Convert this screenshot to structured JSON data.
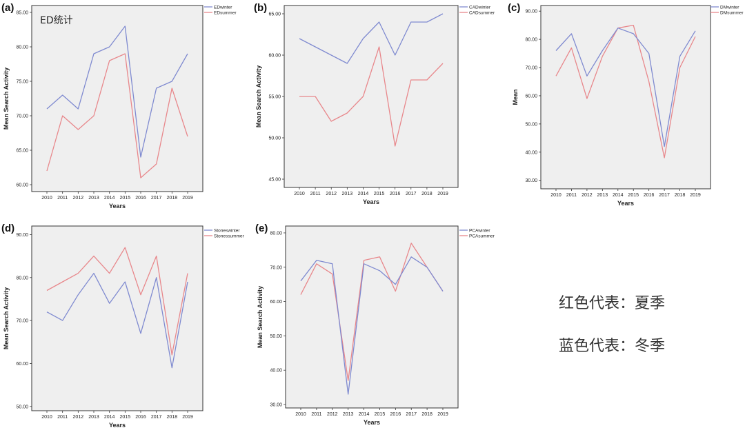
{
  "colors": {
    "winter": "#7f8ad0",
    "summer": "#e8878b",
    "plot_bg": "#efefef",
    "frame": "#333333"
  },
  "notes": {
    "summer_note": "红色代表：夏季",
    "winter_note": "蓝色代表：冬季"
  },
  "chart_data": [
    {
      "panel": "(a)",
      "type": "line",
      "title": "",
      "inner_title": "ED统计",
      "xlabel": "Years",
      "ylabel": "Mean Search Activity",
      "x": [
        "2010",
        "2011",
        "2012",
        "2013",
        "2014",
        "2015",
        "2016",
        "2017",
        "2018",
        "2019"
      ],
      "ylim": [
        59,
        86
      ],
      "yticks": [
        60,
        65,
        70,
        75,
        80,
        85
      ],
      "series": [
        {
          "name": "EDwinter",
          "values": [
            71,
            73,
            71,
            79,
            80,
            83,
            64,
            74,
            75,
            79
          ]
        },
        {
          "name": "EDsummer",
          "values": [
            62,
            70,
            68,
            70,
            78,
            79,
            61,
            63,
            74,
            67
          ]
        }
      ]
    },
    {
      "panel": "(b)",
      "type": "line",
      "title": "",
      "xlabel": "Years",
      "ylabel": "Mean Search Activity",
      "x": [
        "2010",
        "2011",
        "2012",
        "2013",
        "2014",
        "2015",
        "2016",
        "2017",
        "2018",
        "2019"
      ],
      "ylim": [
        44,
        66
      ],
      "yticks": [
        45,
        50,
        55,
        60,
        65
      ],
      "series": [
        {
          "name": "CADwinter",
          "values": [
            62,
            61,
            60,
            59,
            62,
            64,
            60,
            64,
            64,
            65
          ]
        },
        {
          "name": "CADsummer",
          "values": [
            55,
            55,
            52,
            53,
            55,
            61,
            49,
            57,
            57,
            59
          ]
        }
      ]
    },
    {
      "panel": "(c)",
      "type": "line",
      "title": "",
      "xlabel": "Years",
      "ylabel": "Mean",
      "x": [
        "2010",
        "2011",
        "2012",
        "2013",
        "2014",
        "2015",
        "2016",
        "2017",
        "2018",
        "2019"
      ],
      "ylim": [
        27,
        92
      ],
      "yticks": [
        30,
        40,
        50,
        60,
        70,
        80,
        90
      ],
      "series": [
        {
          "name": "DMwinter",
          "values": [
            76,
            82,
            67,
            76,
            84,
            82,
            75,
            42,
            74,
            83
          ]
        },
        {
          "name": "DMsummer",
          "values": [
            67,
            77,
            59,
            74,
            84,
            85,
            65,
            38,
            70,
            81
          ]
        }
      ]
    },
    {
      "panel": "(d)",
      "type": "line",
      "title": "",
      "xlabel": "Years",
      "ylabel": "Mean Search Activity",
      "x": [
        "2010",
        "2011",
        "2012",
        "2013",
        "2014",
        "2015",
        "2016",
        "2017",
        "2018",
        "2019"
      ],
      "ylim": [
        49,
        92
      ],
      "yticks": [
        50,
        60,
        70,
        80,
        90
      ],
      "series": [
        {
          "name": "Stoneswinter",
          "values": [
            72,
            70,
            76,
            81,
            74,
            79,
            67,
            80,
            59,
            79
          ]
        },
        {
          "name": "Stonessummer",
          "values": [
            77,
            79,
            81,
            85,
            81,
            87,
            76,
            85,
            62,
            81
          ]
        }
      ]
    },
    {
      "panel": "(e)",
      "type": "line",
      "title": "",
      "xlabel": "Years",
      "ylabel": "Mean Search Activity",
      "x": [
        "2010",
        "2011",
        "2012",
        "2013",
        "2014",
        "2015",
        "2016",
        "2017",
        "2018",
        "2019"
      ],
      "ylim": [
        29,
        82
      ],
      "yticks": [
        30,
        40,
        50,
        60,
        70,
        80
      ],
      "series": [
        {
          "name": "PCAwinter",
          "values": [
            66,
            72,
            71,
            33,
            71,
            69,
            65,
            73,
            70,
            63
          ]
        },
        {
          "name": "PCAsummer",
          "values": [
            62,
            71,
            68,
            37,
            72,
            73,
            63,
            77,
            70,
            63
          ]
        }
      ]
    }
  ]
}
